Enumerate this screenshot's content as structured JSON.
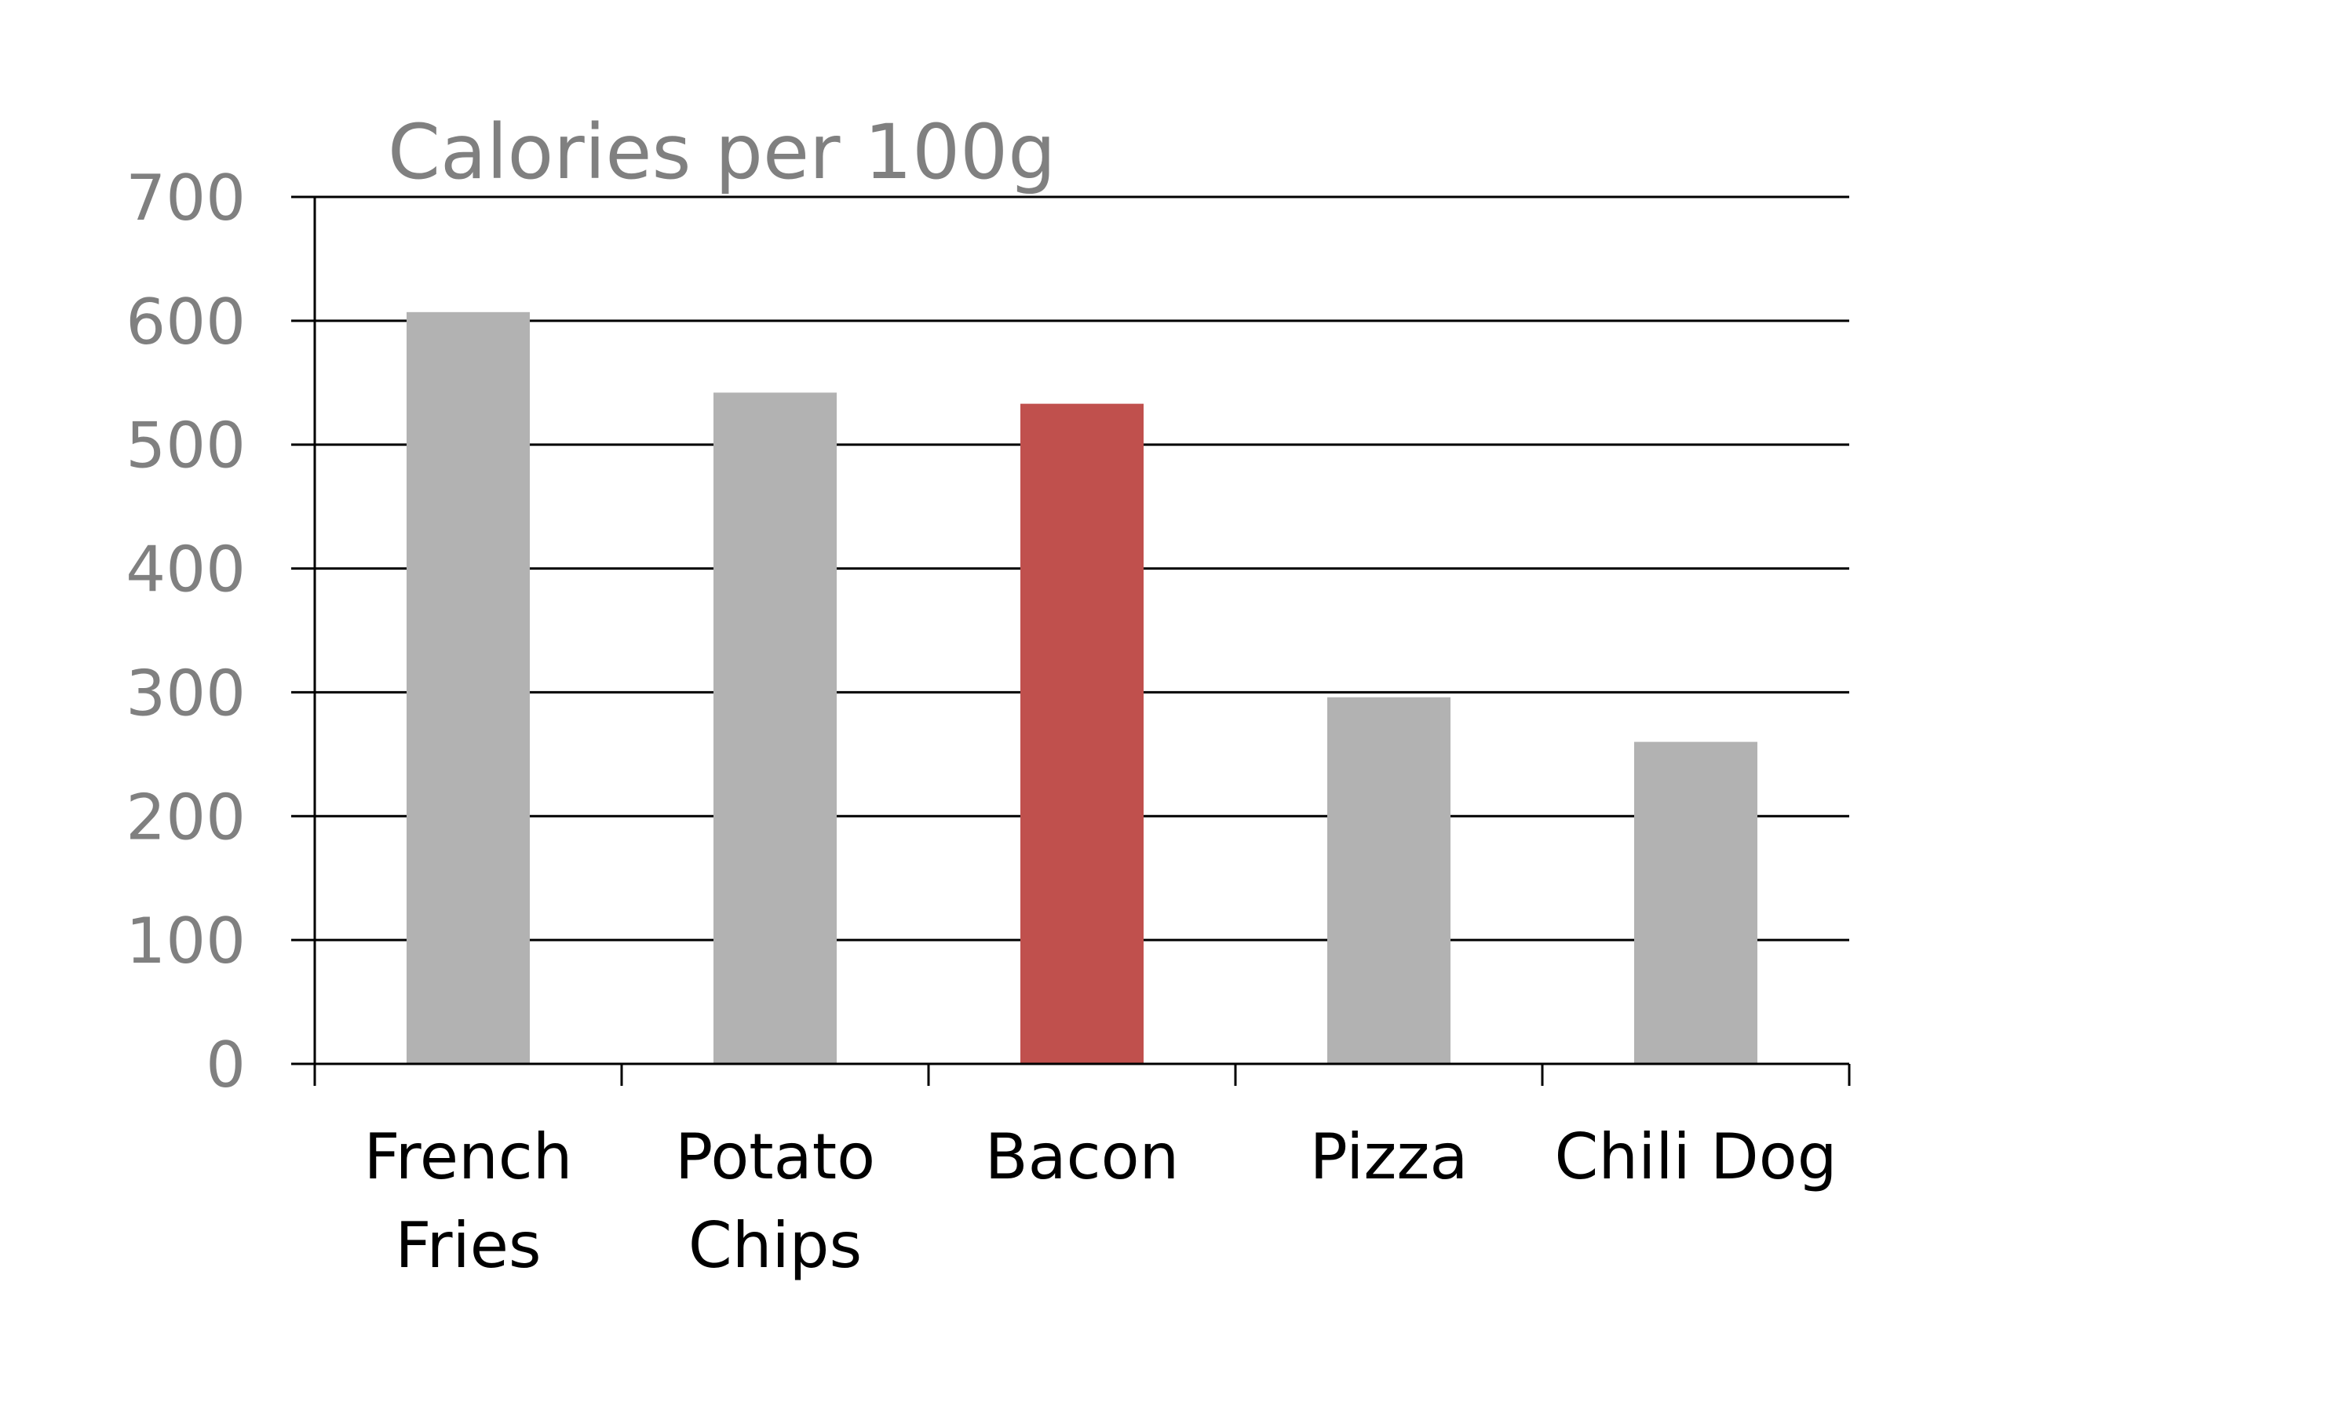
{
  "chart_data": {
    "type": "bar",
    "title": "Calories per 100g",
    "xlabel": "",
    "ylabel": "",
    "categories": [
      [
        "French",
        "Fries"
      ],
      [
        "Potato",
        "Chips"
      ],
      [
        "Bacon"
      ],
      [
        "Pizza"
      ],
      [
        "Chili Dog"
      ]
    ],
    "category_names": [
      "French Fries",
      "Potato Chips",
      "Bacon",
      "Pizza",
      "Chili Dog"
    ],
    "values": [
      607,
      542,
      533,
      296,
      260
    ],
    "ylim": [
      0,
      700
    ],
    "yticks": [
      0,
      100,
      200,
      300,
      400,
      500,
      600,
      700
    ],
    "grid": true,
    "legend": "none",
    "colors": {
      "default_bar": "#b2b2b2",
      "highlight_bar": "#c0504d",
      "title": "#808080",
      "y_tick_labels": "#808080",
      "x_tick_labels": "#000000",
      "grid": "#000000"
    },
    "highlight": "Bacon"
  }
}
